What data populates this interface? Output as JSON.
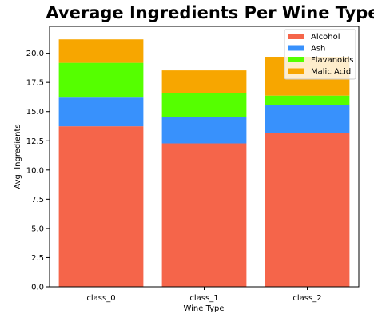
{
  "chart_data": {
    "type": "bar",
    "stacked": true,
    "title": "Average Ingredients Per Wine Type",
    "xlabel": "Wine Type",
    "ylabel": "Avg. Ingredients",
    "categories": [
      "class_0",
      "class_1",
      "class_2"
    ],
    "series": [
      {
        "name": "Alcohol",
        "color": "#f5654a",
        "values": [
          13.74,
          12.28,
          13.15
        ]
      },
      {
        "name": "Ash",
        "color": "#3891fc",
        "values": [
          2.46,
          2.24,
          2.44
        ]
      },
      {
        "name": "Flavanoids",
        "color": "#55ff00",
        "values": [
          2.98,
          2.08,
          0.78
        ]
      },
      {
        "name": "Malic Acid",
        "color": "#f7a600",
        "values": [
          2.01,
          1.93,
          3.33
        ]
      }
    ],
    "ylim": [
      0,
      22.3
    ],
    "yticks": [
      "0.0",
      "2.5",
      "5.0",
      "7.5",
      "10.0",
      "12.5",
      "15.0",
      "17.5",
      "20.0"
    ],
    "ytick_values": [
      0,
      2.5,
      5,
      7.5,
      10,
      12.5,
      15,
      17.5,
      20
    ],
    "grid": false,
    "legend_position": "top-right"
  }
}
